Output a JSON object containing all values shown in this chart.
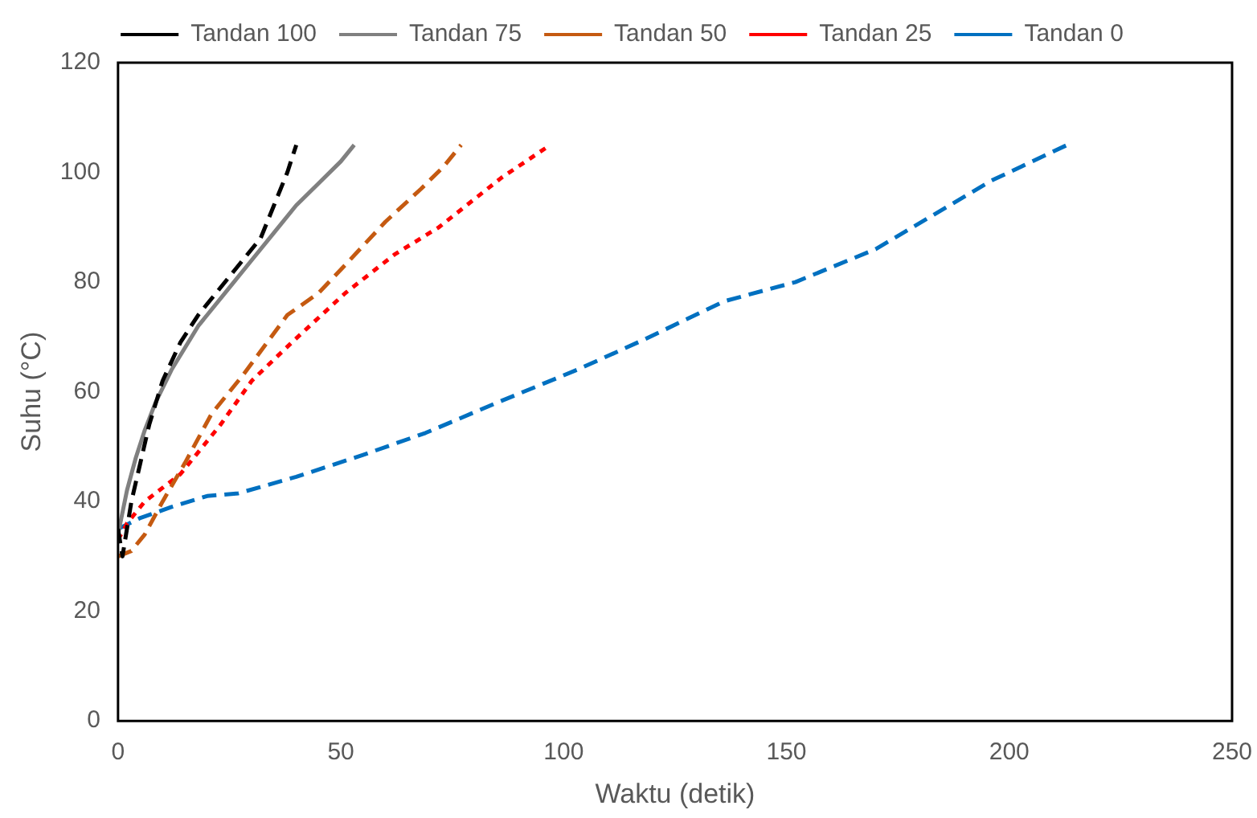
{
  "chart_data": {
    "type": "line",
    "xlabel": "Waktu (detik)",
    "ylabel": "Suhu (°C)",
    "xlim": [
      0,
      250
    ],
    "xticks": [
      0,
      50,
      100,
      150,
      200,
      250
    ],
    "ylim": [
      0,
      120
    ],
    "yticks": [
      0,
      20,
      40,
      60,
      80,
      100,
      120
    ],
    "grid": false,
    "legend": "top",
    "marker": "none",
    "series": [
      {
        "name": "Tandan 100",
        "color": "#000000",
        "line_style": "dashed",
        "x": [
          0,
          1,
          3,
          5,
          7,
          10,
          14,
          18,
          22,
          28,
          32,
          35,
          38,
          40
        ],
        "values": [
          35,
          30,
          40,
          47,
          54,
          62,
          69,
          74,
          78,
          84,
          88,
          94,
          100,
          105
        ]
      },
      {
        "name": "Tandan 75",
        "color": "#808080",
        "line_style": "solid",
        "x": [
          0,
          2,
          4,
          6,
          8.4,
          12,
          18,
          25,
          30,
          35,
          40,
          45,
          50,
          53
        ],
        "values": [
          34,
          42,
          48,
          53,
          58,
          64,
          72,
          79,
          84,
          89,
          94,
          98,
          102,
          105
        ]
      },
      {
        "name": "Tandan 50",
        "color": "#c55a11",
        "line_style": "dashed",
        "x": [
          0,
          3,
          6,
          10,
          15,
          21,
          28,
          38,
          45,
          52,
          60,
          68,
          73,
          77
        ],
        "values": [
          30,
          31,
          34,
          40,
          47,
          56,
          63,
          74,
          78,
          84,
          91,
          97,
          101,
          105
        ]
      },
      {
        "name": "Tandan 25",
        "color": "#ff0000",
        "line_style": "dotted",
        "x": [
          0,
          2,
          6,
          14,
          23,
          30,
          39,
          51,
          62,
          72,
          86,
          97
        ],
        "values": [
          33,
          36,
          40,
          45,
          54,
          62,
          69,
          78,
          85,
          90,
          99,
          105
        ]
      },
      {
        "name": "Tandan 0",
        "color": "#0070c0",
        "line_style": "dashed",
        "x": [
          0,
          5,
          12,
          20,
          27,
          40,
          55,
          69,
          85,
          103,
          118,
          136,
          152,
          170,
          196,
          213
        ],
        "values": [
          35,
          37,
          39,
          41,
          41.5,
          44.5,
          48.5,
          52.5,
          58,
          64,
          69.5,
          76.5,
          80,
          86,
          98.5,
          105
        ]
      }
    ]
  }
}
